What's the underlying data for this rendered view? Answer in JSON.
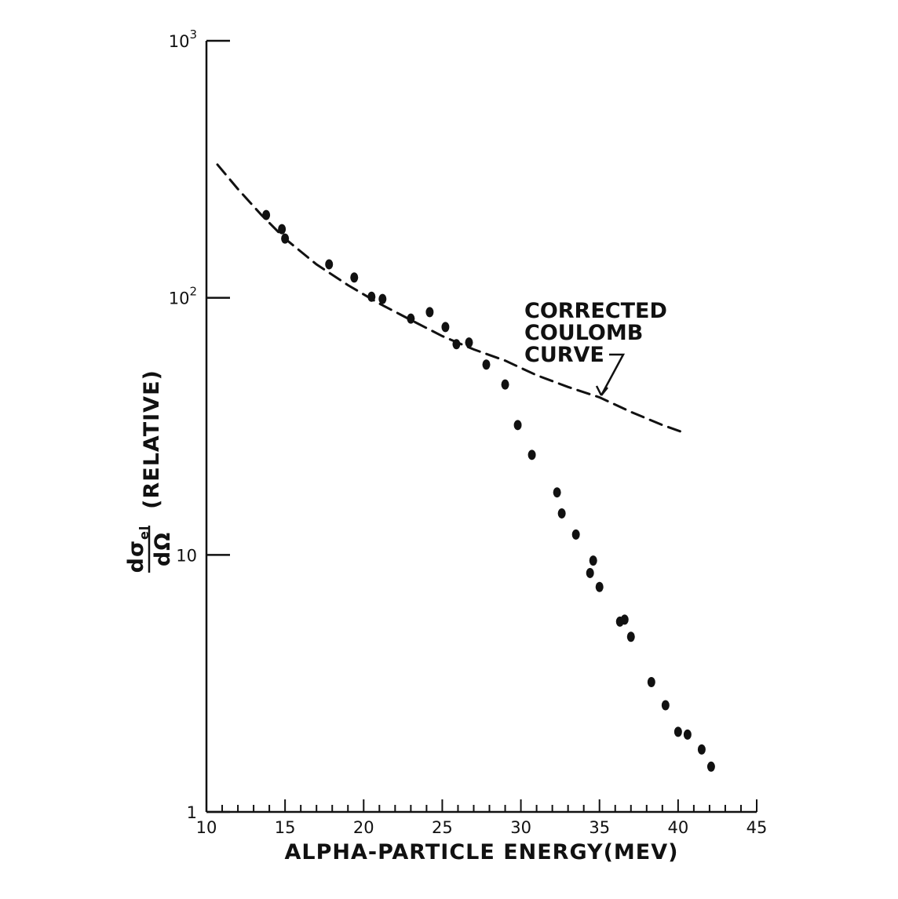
{
  "chart_data": {
    "type": "scatter",
    "title": "",
    "xlabel": "ALPHA-PARTICLE ENERGY(MEV)",
    "ylabel": {
      "numerator": "dσ",
      "numerator_sub": "el",
      "denominator": "dΩ",
      "suffix": "(RELATIVE)"
    },
    "x_scale": "linear",
    "y_scale": "log",
    "xlim": [
      10,
      45
    ],
    "ylim": [
      1,
      1000
    ],
    "x_ticks": [
      "10",
      "15",
      "20",
      "25",
      "30",
      "35",
      "40",
      "45"
    ],
    "y_ticks": [
      {
        "value": 1,
        "label": "1"
      },
      {
        "value": 10,
        "label": "10"
      },
      {
        "value": 100,
        "label": "10",
        "sup": "2"
      },
      {
        "value": 1000,
        "label": "10",
        "sup": "3"
      }
    ],
    "grid": false,
    "series": [
      {
        "type": "line",
        "style": "dashed",
        "x": [
          10.7,
          12,
          13.5,
          15,
          17,
          19,
          21,
          23,
          25,
          27,
          29,
          31,
          33,
          35,
          37,
          39,
          40.3
        ],
        "y": [
          330,
          265,
          210,
          170,
          135,
          112,
          95,
          82,
          71,
          63,
          57,
          50,
          45,
          41,
          36,
          32,
          30
        ]
      },
      {
        "type": "scatter",
        "x": [
          13.8,
          14.8,
          15.0,
          17.8,
          19.4,
          20.5,
          21.2,
          23.0,
          24.2,
          25.2,
          25.9,
          26.7,
          27.8,
          29.0,
          29.8,
          30.7,
          32.3,
          32.6,
          33.5,
          34.4,
          34.6,
          35.0,
          36.3,
          36.6,
          37.0,
          38.3,
          39.2,
          40.0,
          40.6,
          41.5,
          42.1
        ],
        "y": [
          210,
          185,
          170,
          135,
          120,
          101,
          99,
          83,
          88,
          77,
          66,
          67,
          55,
          46,
          32,
          24.5,
          17.5,
          14.5,
          12,
          8.5,
          9.5,
          7.5,
          5.5,
          5.6,
          4.8,
          3.2,
          2.6,
          2.05,
          2.0,
          1.75,
          1.5
        ]
      }
    ],
    "annotation": {
      "lines": [
        "CORRECTED",
        "COULOMB",
        "CURVE"
      ],
      "points_to": {
        "x": 34.5,
        "y": 40
      }
    }
  }
}
